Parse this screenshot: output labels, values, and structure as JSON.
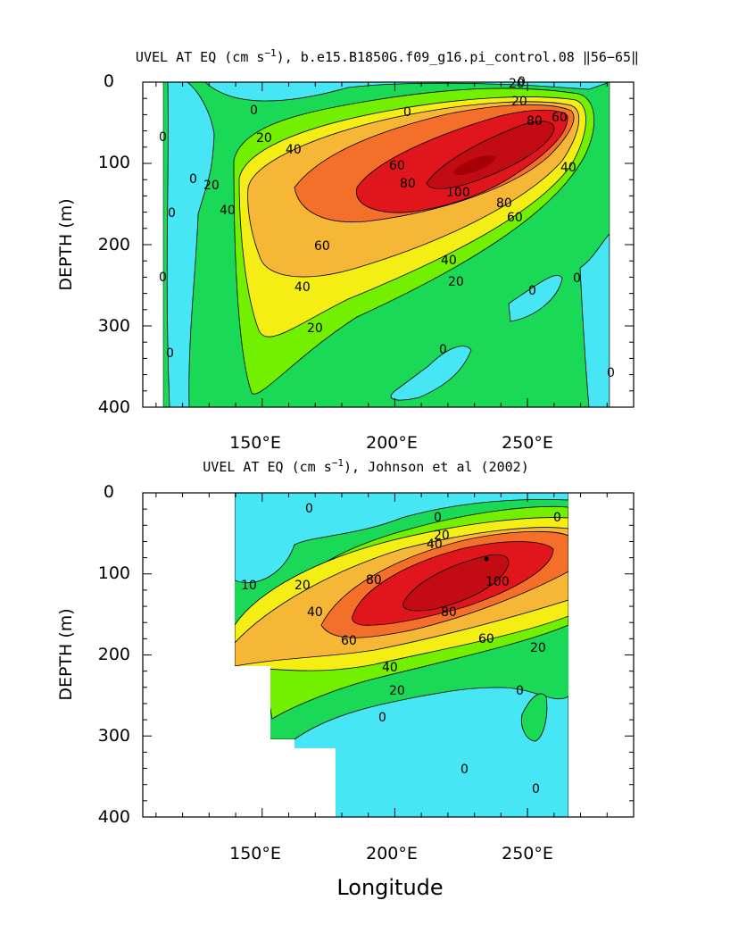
{
  "colors": {
    "neg": "#47e6f5",
    "c0": "#19d957",
    "c20": "#73f000",
    "c40": "#f5ee14",
    "c60": "#f6b636",
    "c80": "#f4702a",
    "c100": "#e1161c",
    "c120": "#c20b12"
  },
  "chart_data": [
    {
      "type": "contour",
      "title_pre": "UVEL AT EQ (cm s",
      "title_sup": "−1",
      "title_post": "), b.e15.B1850G.f09_g16.pi_control.08 ‖56−65‖",
      "xlabel": "",
      "ylabel": "DEPTH (m)",
      "xlim": [
        105,
        290
      ],
      "ylim": [
        0,
        400
      ],
      "x_ticks": [
        "150°E",
        "200°E",
        "250°E"
      ],
      "y_ticks": [
        "0",
        "100",
        "200",
        "300",
        "400"
      ],
      "contour_interval": 10,
      "contour_labels": [
        "0",
        "0",
        "0",
        "0",
        "0",
        "0",
        "0",
        "0",
        "0",
        "0",
        "0",
        "0",
        "20",
        "20",
        "20",
        "20",
        "20",
        "20",
        "40",
        "40",
        "40",
        "40",
        "40",
        "60",
        "60",
        "60",
        "60",
        "80",
        "80",
        "80",
        "100"
      ],
      "jet_core": {
        "longitude": 235,
        "depth": 110,
        "max": 110
      },
      "data_extent_longitude": [
        117,
        280
      ]
    },
    {
      "type": "contour",
      "title_pre": "UVEL AT EQ (cm s",
      "title_sup": "−1",
      "title_post": "), Johnson et al (2002)",
      "xlabel": "Longitude",
      "ylabel": "DEPTH (m)",
      "xlim": [
        105,
        290
      ],
      "ylim": [
        0,
        400
      ],
      "x_ticks": [
        "150°E",
        "200°E",
        "250°E"
      ],
      "y_ticks": [
        "0",
        "100",
        "200",
        "300",
        "400"
      ],
      "contour_interval": 10,
      "contour_labels": [
        "0",
        "0",
        "0",
        "0",
        "0",
        "0",
        "0",
        "10",
        "20",
        "20",
        "20",
        "20",
        "40",
        "40",
        "40",
        "60",
        "60",
        "80",
        "80",
        "100"
      ],
      "jet_core": {
        "longitude": 235,
        "depth": 110,
        "max": 110
      },
      "data_extent_longitude": [
        143,
        265
      ]
    }
  ]
}
